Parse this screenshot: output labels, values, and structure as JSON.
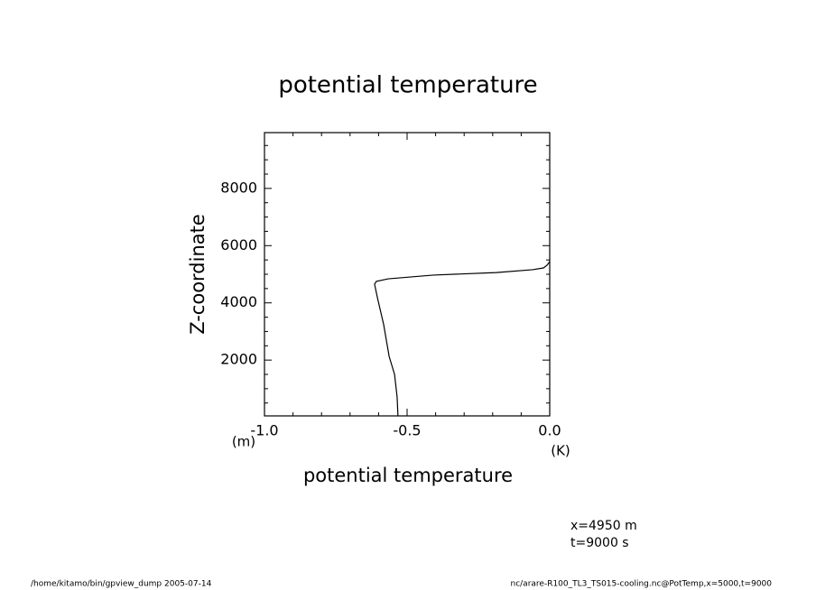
{
  "chart_data": {
    "type": "line",
    "title": "potential temperature",
    "x_label": "potential temperature",
    "y_label": "Z-coordinate",
    "x_unit": "(K)",
    "y_unit": "(m)",
    "annotations": [
      "x=4950  m",
      "t=9000  s"
    ],
    "footer_left": "/home/kitamo/bin/gpview_dump  2005-07-14",
    "footer_right": "nc/arare-R100_TL3_TS015-cooling.nc@PotTemp,x=5000,t=9000",
    "xlim": [
      -1,
      0
    ],
    "ylim": [
      50,
      9950
    ],
    "xticks": [
      {
        "value": -1,
        "label": "-1.0"
      },
      -0.5,
      {
        "value": 0,
        "label": "0.0"
      }
    ],
    "yticks": [
      2000,
      4000,
      6000,
      8000
    ],
    "xminorticks": [
      -0.9,
      -0.8,
      -0.7,
      -0.6,
      -0.4,
      -0.3,
      -0.2,
      -0.1
    ],
    "yminorticks": [
      500,
      1000,
      1500,
      2500,
      3000,
      3500,
      4500,
      5000,
      5500,
      6500,
      7000,
      7500,
      8500,
      9000,
      9500
    ],
    "series": [
      {
        "color": "#000000",
        "x": [
          -0.532,
          -0.535,
          -0.544,
          -0.563,
          -0.582,
          -0.604,
          -0.614,
          -0.608,
          -0.566,
          -0.408,
          -0.187,
          -0.06,
          -0.022,
          -0.009,
          0.0
        ],
        "values": [
          50,
          710,
          1500,
          2130,
          3235,
          4180,
          4650,
          4750,
          4840,
          4970,
          5060,
          5160,
          5220,
          5320,
          5440
        ]
      }
    ]
  }
}
